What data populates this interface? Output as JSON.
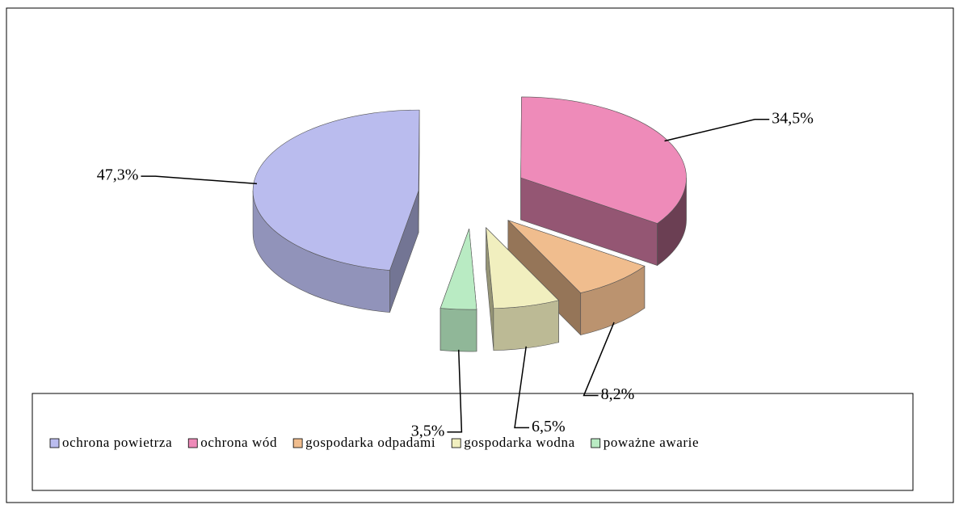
{
  "chart_data": {
    "type": "pie",
    "categories": [
      "ochrona powietrza",
      "ochrona wód",
      "gospodarka odpadami",
      "gospodarka wodna",
      "poważne awarie"
    ],
    "values": [
      47.3,
      34.5,
      8.2,
      6.5,
      3.5
    ],
    "value_labels": [
      "47,3%",
      "34,5%",
      "8,2%",
      "6,5%",
      "3,5%"
    ],
    "colors": [
      "#babcee",
      "#ee8bb9",
      "#f0bd8e",
      "#f1efbf",
      "#b9ebc3"
    ],
    "legend": "bottom"
  }
}
